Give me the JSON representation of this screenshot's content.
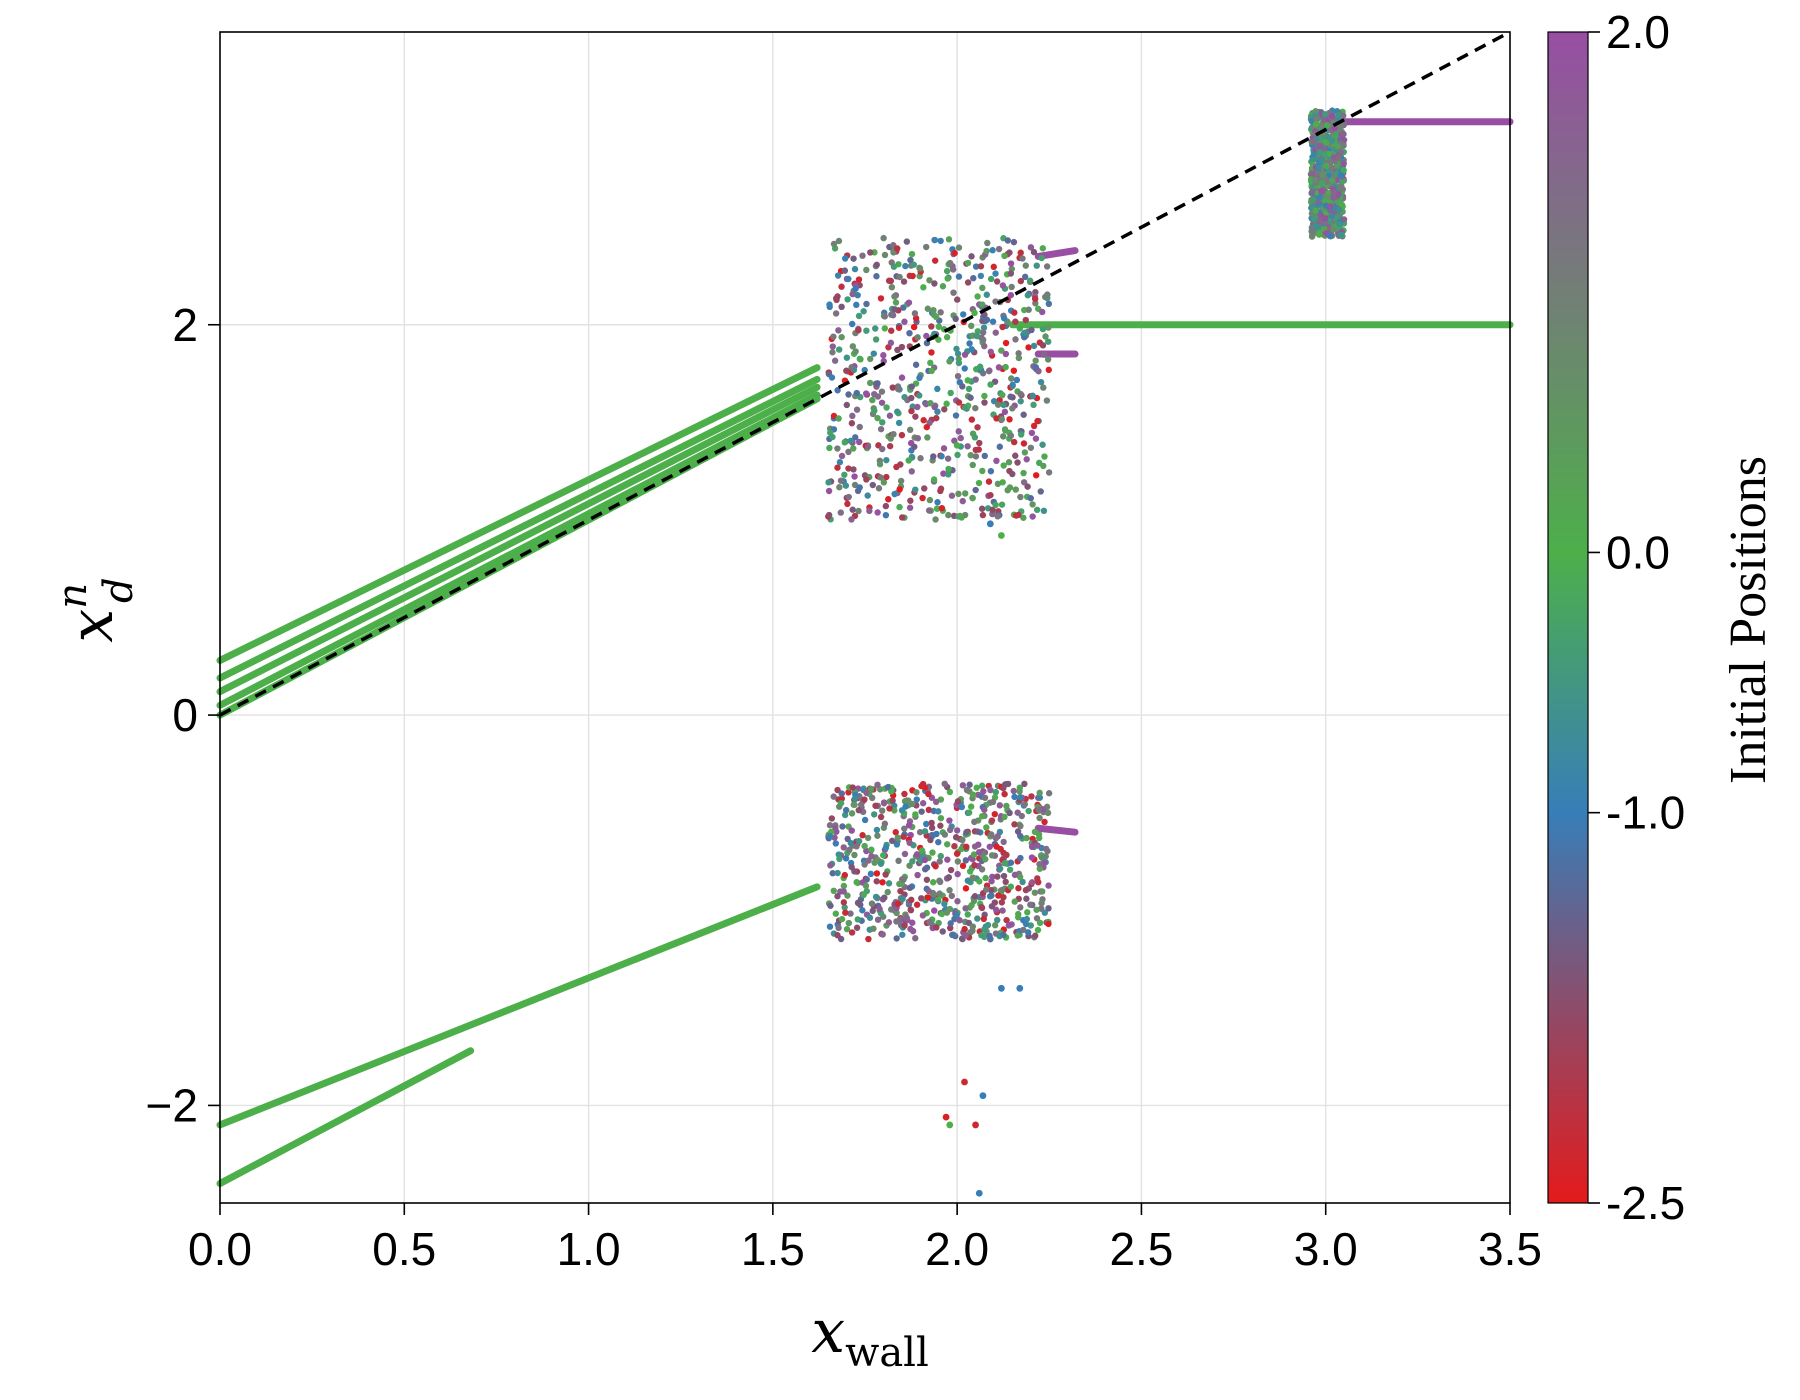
{
  "chart_data": {
    "type": "scatter",
    "xlabel_base": "x",
    "xlabel_sub": "wall",
    "ylabel_base": "x",
    "ylabel_sup": "n",
    "ylabel_sub": "d",
    "xlim": [
      0.0,
      3.5
    ],
    "ylim": [
      -2.5,
      3.5
    ],
    "xticks": [
      0.0,
      0.5,
      1.0,
      1.5,
      2.0,
      2.5,
      3.0,
      3.5
    ],
    "xtick_labels": [
      "0.0",
      "0.5",
      "1.0",
      "1.5",
      "2.0",
      "2.5",
      "3.0",
      "3.5"
    ],
    "yticks": [
      -2,
      0,
      2
    ],
    "ytick_labels": [
      "−2",
      "0",
      "2"
    ],
    "grid": true,
    "reference_line": {
      "style": "dashed",
      "color": "#000000",
      "x": [
        0.0,
        3.5
      ],
      "y": [
        0.0,
        3.5
      ]
    },
    "colorbar": {
      "label": "Initial Positions",
      "range": [
        -2.5,
        2.0
      ],
      "ticks": [
        -2.5,
        -1.0,
        0.0,
        2.0
      ],
      "tick_labels": [
        "-2.5",
        "-1.0",
        "0.0",
        "2.0"
      ],
      "colors": [
        "#e41a1c",
        "#377eb8",
        "#4daf4a",
        "#984ea3"
      ]
    },
    "branches": [
      {
        "color": "#4daf4a",
        "x": [
          0.0,
          1.62
        ],
        "y": [
          0.28,
          1.78
        ]
      },
      {
        "color": "#4daf4a",
        "x": [
          0.0,
          1.62
        ],
        "y": [
          0.19,
          1.72
        ]
      },
      {
        "color": "#4daf4a",
        "x": [
          0.0,
          1.62
        ],
        "y": [
          0.12,
          1.68
        ]
      },
      {
        "color": "#4daf4a",
        "x": [
          0.0,
          1.62
        ],
        "y": [
          0.05,
          1.64
        ]
      },
      {
        "color": "#4daf4a",
        "x": [
          0.0,
          1.62
        ],
        "y": [
          0.0,
          1.62
        ]
      },
      {
        "color": "#4daf4a",
        "x": [
          0.0,
          1.62
        ],
        "y": [
          -2.1,
          -0.88
        ]
      },
      {
        "color": "#4daf4a",
        "x": [
          0.0,
          0.68
        ],
        "y": [
          -2.4,
          -1.72
        ]
      },
      {
        "color": "#4daf4a",
        "x": [
          2.15,
          3.5
        ],
        "y": [
          2.0,
          2.0
        ]
      },
      {
        "color": "#984ea3",
        "x": [
          3.02,
          3.5
        ],
        "y": [
          3.04,
          3.04
        ]
      },
      {
        "color": "#984ea3",
        "x": [
          2.22,
          2.32
        ],
        "y": [
          2.35,
          2.38
        ]
      },
      {
        "color": "#984ea3",
        "x": [
          2.22,
          2.32
        ],
        "y": [
          1.85,
          1.85
        ]
      },
      {
        "color": "#984ea3",
        "x": [
          2.22,
          2.32
        ],
        "y": [
          -0.58,
          -0.6
        ]
      }
    ],
    "scatter_clusters": [
      {
        "x_range": [
          1.65,
          2.25
        ],
        "y_range": [
          1.0,
          2.45
        ],
        "color_range": [
          -2.5,
          2.0
        ]
      },
      {
        "x_range": [
          1.65,
          2.25
        ],
        "y_range": [
          -1.15,
          -0.35
        ],
        "color_range": [
          -2.5,
          2.0
        ]
      },
      {
        "x_range": [
          2.96,
          3.05
        ],
        "y_range": [
          2.45,
          3.1
        ],
        "color_range": [
          -1.0,
          2.0
        ]
      }
    ],
    "outlier_points": [
      {
        "x": 2.02,
        "y": -1.88,
        "c": -2.3
      },
      {
        "x": 1.97,
        "y": -2.06,
        "c": -2.4
      },
      {
        "x": 2.05,
        "y": -2.1,
        "c": -2.3
      },
      {
        "x": 2.07,
        "y": -1.95,
        "c": -1.0
      },
      {
        "x": 1.98,
        "y": -2.1,
        "c": 0.0
      },
      {
        "x": 2.06,
        "y": -2.45,
        "c": -1.0
      },
      {
        "x": 2.09,
        "y": 0.98,
        "c": -1.0
      },
      {
        "x": 2.12,
        "y": 0.92,
        "c": 0.0
      },
      {
        "x": 2.12,
        "y": -1.4,
        "c": -1.0
      },
      {
        "x": 2.17,
        "y": -1.4,
        "c": -1.0
      }
    ]
  }
}
